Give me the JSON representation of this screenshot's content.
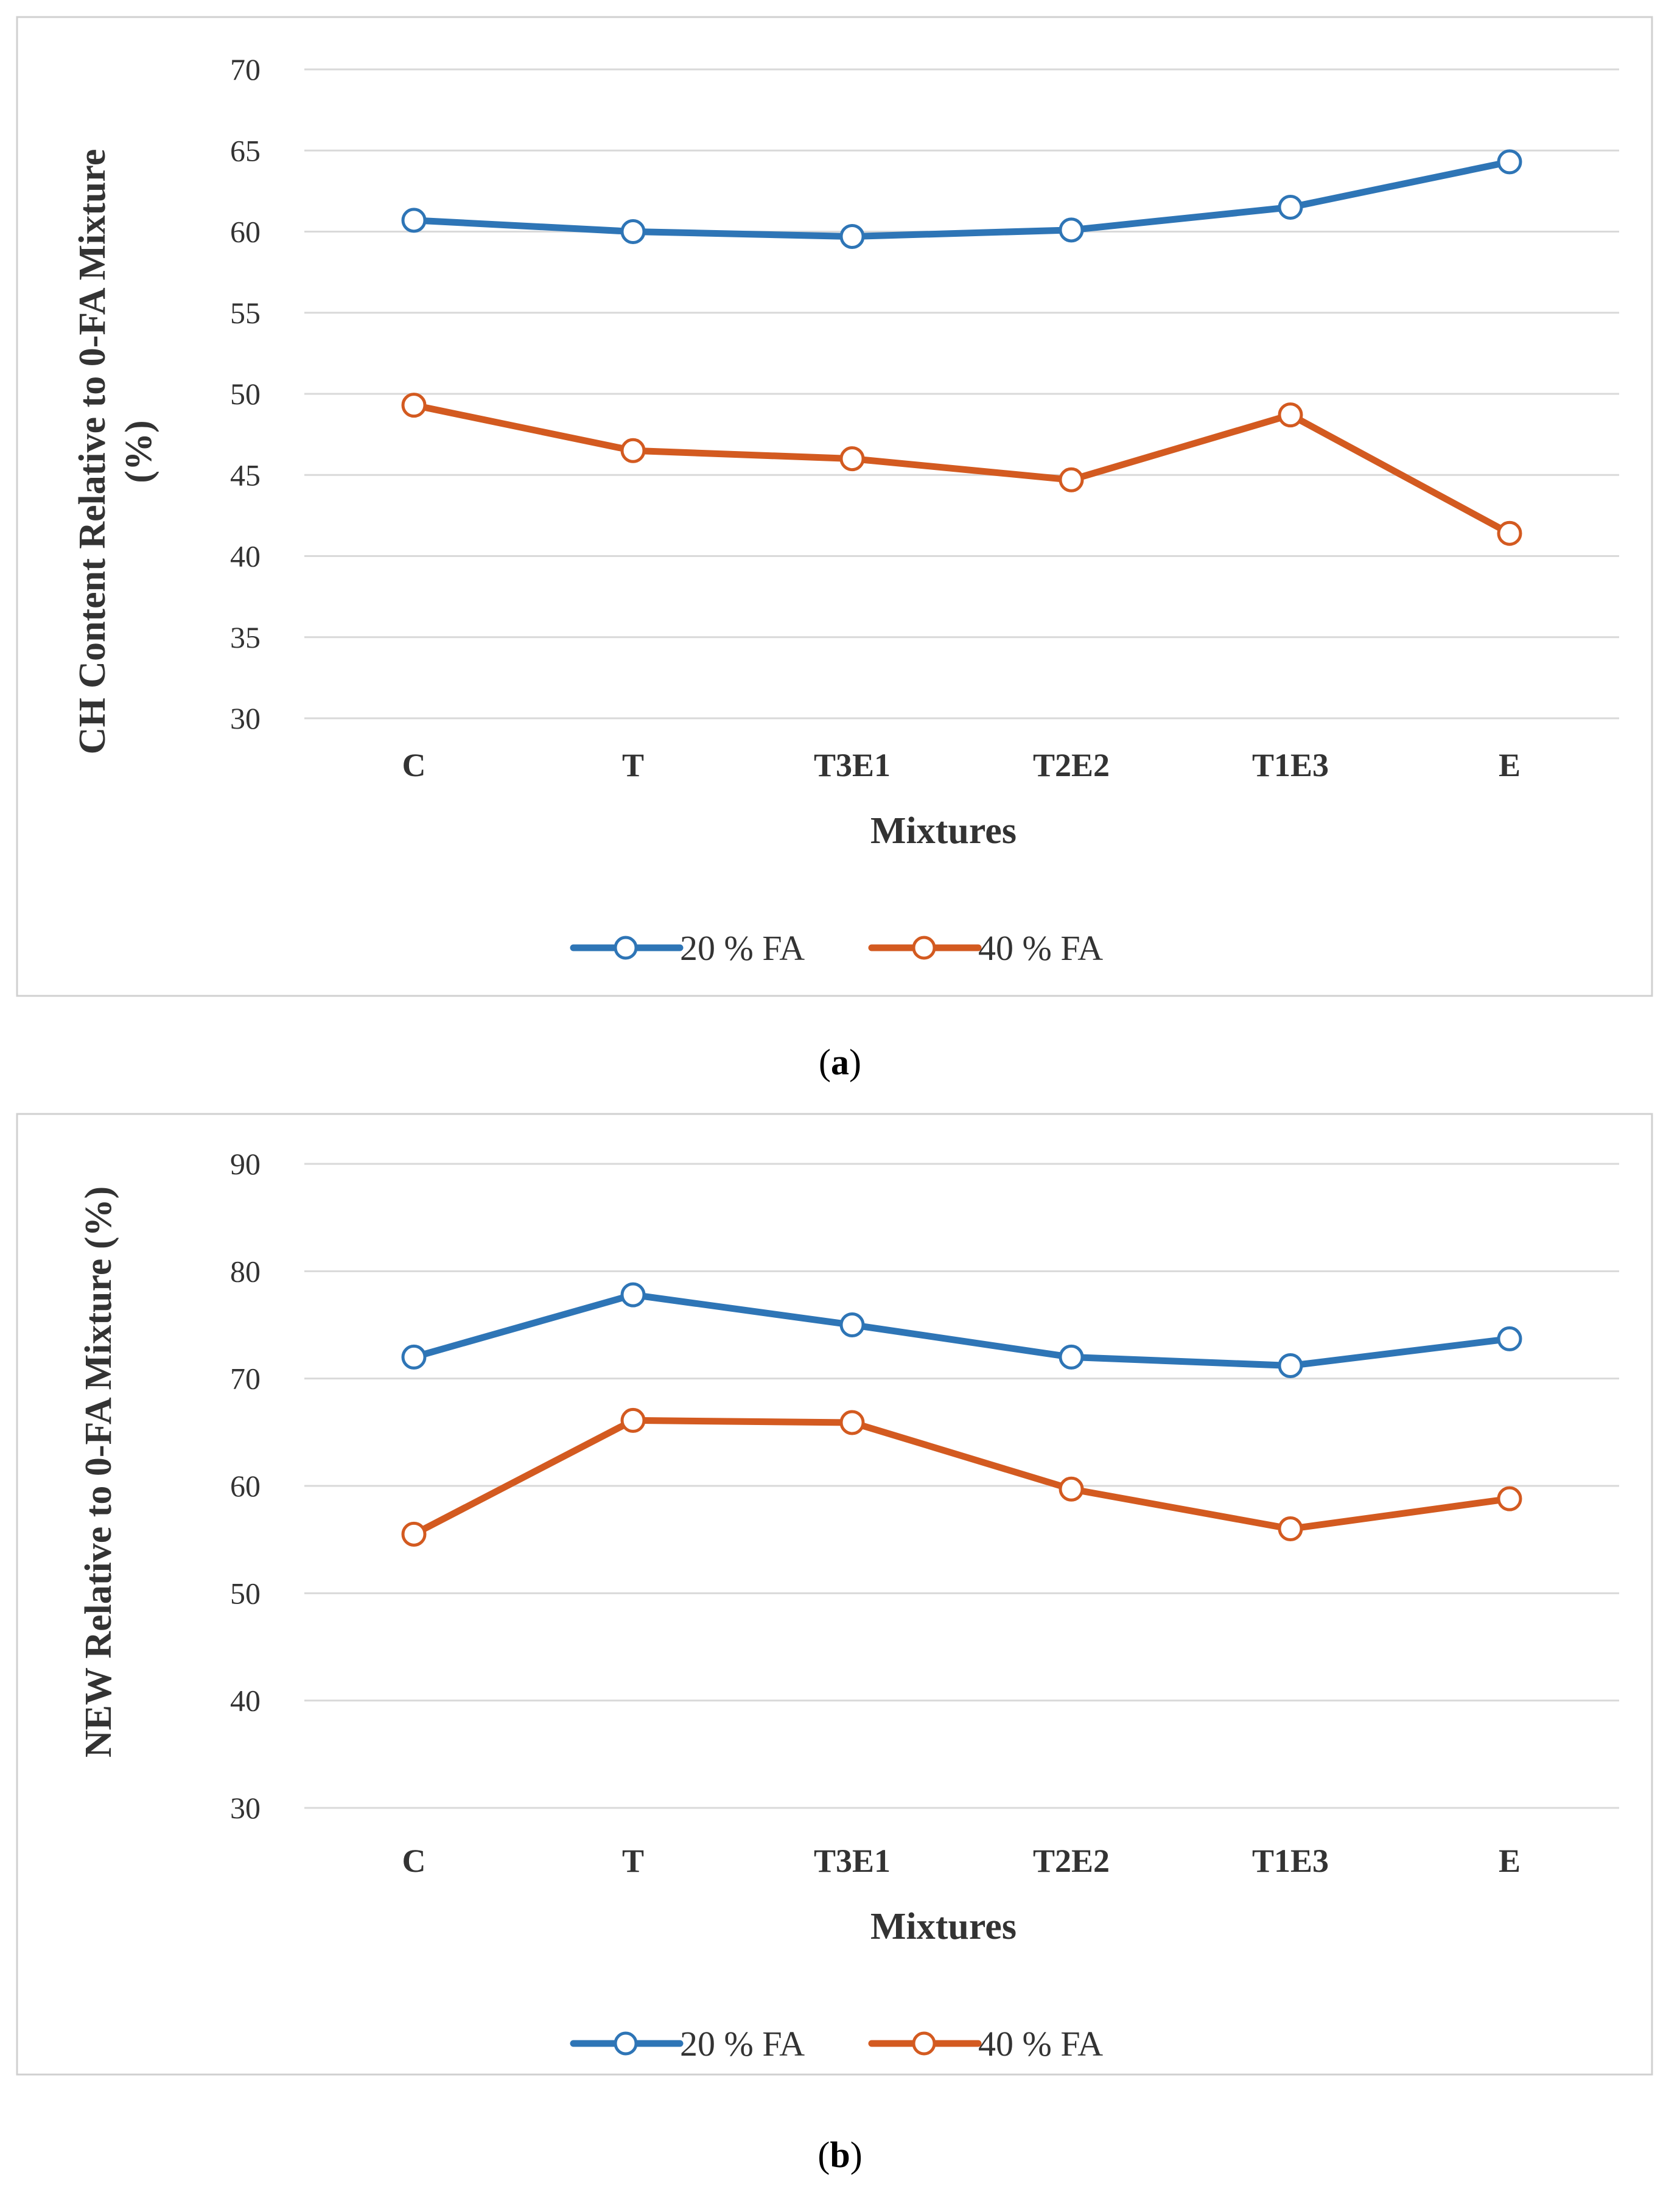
{
  "chart_data": [
    {
      "type": "line",
      "panel_label": "a",
      "categories": [
        "C",
        "T",
        "T3E1",
        "T2E2",
        "T1E3",
        "E"
      ],
      "xlabel": "Mixtures",
      "ylabel": "CH Content Relative to 0-FA Mixture (%)",
      "ylim": [
        30,
        70
      ],
      "yticks": [
        30,
        35,
        40,
        45,
        50,
        55,
        60,
        65,
        70
      ],
      "grid": true,
      "legend_position": "bottom-center",
      "series": [
        {
          "name": "20 % FA",
          "color": "#2E75B6",
          "values": [
            60.7,
            60.0,
            59.7,
            60.1,
            61.5,
            64.3
          ]
        },
        {
          "name": "40 % FA",
          "color": "#D35A20",
          "values": [
            49.3,
            46.5,
            46.0,
            44.7,
            48.7,
            41.4
          ]
        }
      ]
    },
    {
      "type": "line",
      "panel_label": "b",
      "categories": [
        "C",
        "T",
        "T3E1",
        "T2E2",
        "T1E3",
        "E"
      ],
      "xlabel": "Mixtures",
      "ylabel": "NEW Relative to 0-FA Mixture (%)",
      "ylim": [
        30,
        90
      ],
      "yticks": [
        30,
        40,
        50,
        60,
        70,
        80,
        90
      ],
      "grid": true,
      "legend_position": "bottom-center",
      "series": [
        {
          "name": "20 % FA",
          "color": "#2E75B6",
          "values": [
            72.0,
            77.8,
            75.0,
            72.0,
            71.2,
            73.7
          ]
        },
        {
          "name": "40 % FA",
          "color": "#D35A20",
          "values": [
            55.5,
            66.1,
            65.9,
            59.7,
            56.0,
            58.8
          ]
        }
      ]
    }
  ]
}
